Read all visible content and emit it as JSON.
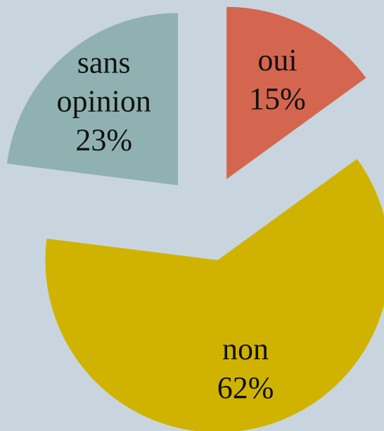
{
  "chart_data": {
    "type": "pie",
    "categories": [
      "oui",
      "non",
      "sans opinion"
    ],
    "values": [
      15,
      62,
      23
    ],
    "value_labels": [
      "15%",
      "62%",
      "23%"
    ],
    "colors": [
      "#d4664f",
      "#d0b300",
      "#90b1b1"
    ]
  }
}
